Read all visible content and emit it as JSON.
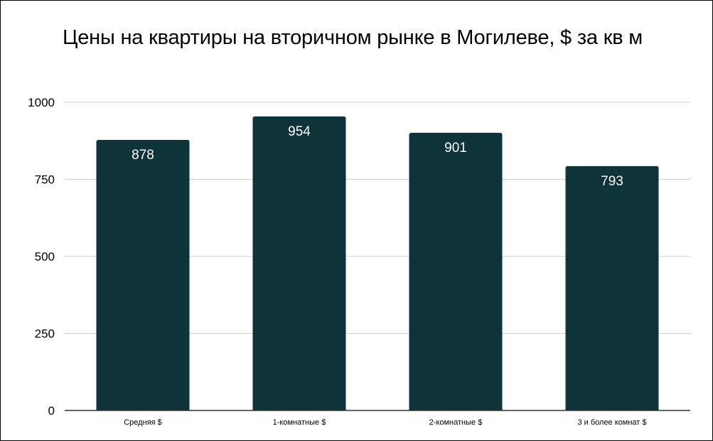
{
  "chart_data": {
    "type": "bar",
    "title": "Цены на квартиры на вторичном рынке в Могилеве, $ за кв м",
    "categories": [
      "Средняя $",
      "1-комнатные $",
      "2-комнатные $",
      "3 и более комнат $"
    ],
    "values": [
      878,
      954,
      901,
      793
    ],
    "data_labels": [
      "878",
      "954",
      "901",
      "793"
    ],
    "ylim": [
      0,
      1000
    ],
    "yticks": [
      0,
      250,
      500,
      750,
      1000
    ],
    "ytick_labels": [
      "0",
      "250",
      "500",
      "750",
      "1000"
    ],
    "xlabel": "",
    "ylabel": "",
    "grid": true,
    "legend": "none",
    "bar_color": "#0e343a",
    "grid_color": "#cccccc",
    "axis_color": "#333333"
  }
}
